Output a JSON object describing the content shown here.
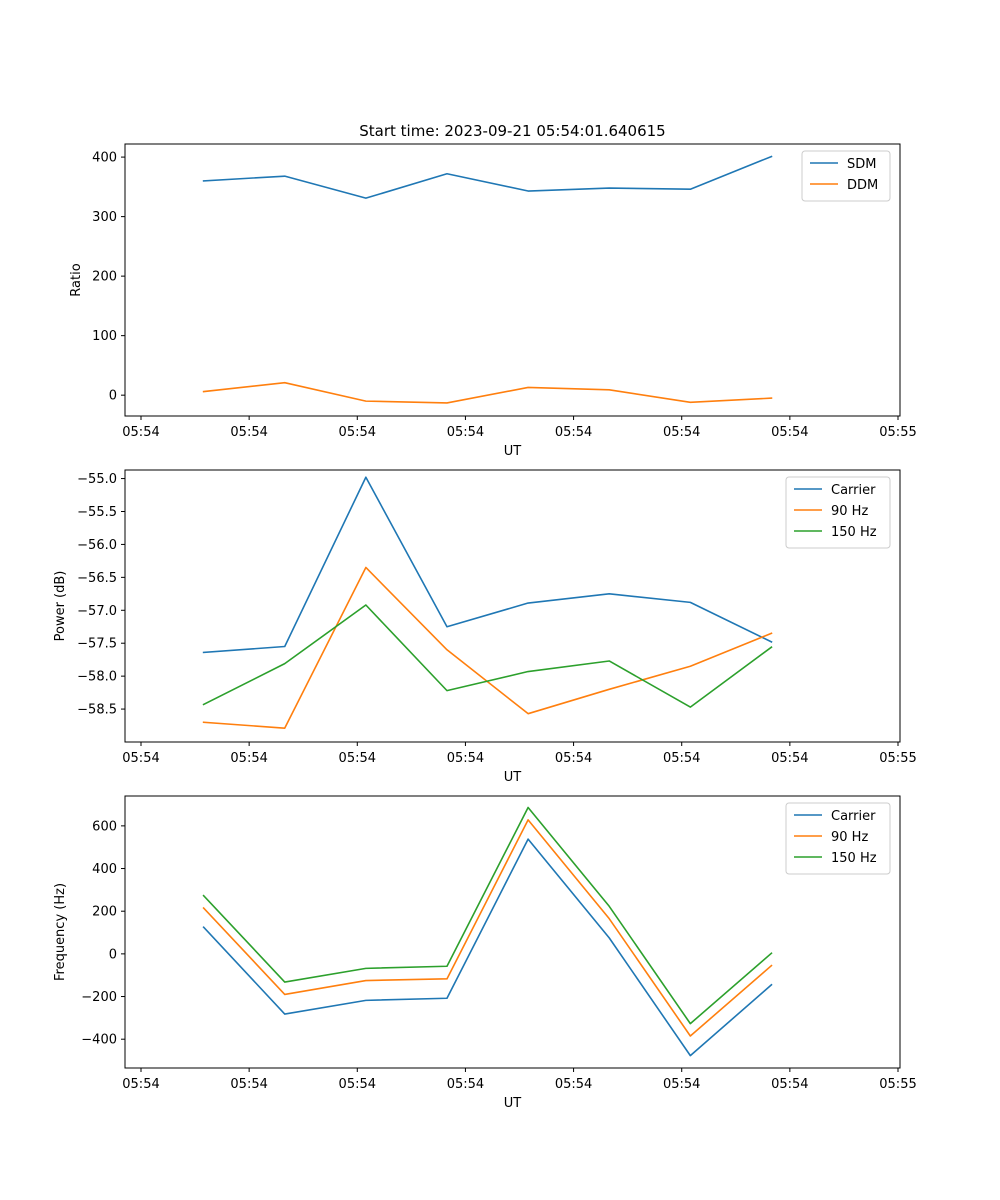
{
  "figure": {
    "title": "Start time: 2023-09-21 05:54:01.640615"
  },
  "colors": {
    "c0": "#1f77b4",
    "c1": "#ff7f0e",
    "c2": "#2ca02c",
    "axis": "#000000",
    "legend_border": "#cccccc"
  },
  "chart_data": [
    {
      "type": "line",
      "title": "Start time: 2023-09-21 05:54:01.640615",
      "xlabel": "UT",
      "ylabel": "Ratio",
      "x_ticks": [
        "05:54",
        "05:54",
        "05:54",
        "05:54",
        "05:54",
        "05:54",
        "05:54",
        "05:55"
      ],
      "xlim": [
        -0.13,
        6.08
      ],
      "x": [
        0.5,
        1.15,
        1.8,
        2.45,
        3.1,
        3.75,
        4.4,
        5.05
      ],
      "ylim": [
        -35,
        422
      ],
      "y_ticks": [
        0,
        100,
        200,
        300,
        400
      ],
      "y_tick_labels": [
        "0",
        "100",
        "200",
        "300",
        "400"
      ],
      "legend": "top-right",
      "series": [
        {
          "name": "SDM",
          "color_key": "c0",
          "values": [
            360,
            368,
            331,
            372,
            343,
            348,
            346,
            401
          ]
        },
        {
          "name": "DDM",
          "color_key": "c1",
          "values": [
            6,
            21,
            -10,
            -13,
            13,
            9,
            -12,
            -5
          ]
        }
      ]
    },
    {
      "type": "line",
      "title": "",
      "xlabel": "UT",
      "ylabel": "Power (dB)",
      "x_ticks": [
        "05:54",
        "05:54",
        "05:54",
        "05:54",
        "05:54",
        "05:54",
        "05:54",
        "05:55"
      ],
      "xlim": [
        -0.13,
        6.08
      ],
      "x": [
        0.5,
        1.15,
        1.8,
        2.45,
        3.1,
        3.75,
        4.4,
        5.05
      ],
      "ylim": [
        -59.0,
        -54.87
      ],
      "y_ticks": [
        -58.5,
        -58.0,
        -57.5,
        -57.0,
        -56.5,
        -56.0,
        -55.5,
        -55.0
      ],
      "y_tick_labels": [
        "−58.5",
        "−58.0",
        "−57.5",
        "−57.0",
        "−56.5",
        "−56.0",
        "−55.5",
        "−55.0"
      ],
      "legend": "top-right",
      "series": [
        {
          "name": "Carrier",
          "color_key": "c0",
          "values": [
            -57.64,
            -57.55,
            -54.98,
            -57.25,
            -56.89,
            -56.75,
            -56.88,
            -57.48
          ]
        },
        {
          "name": "90 Hz",
          "color_key": "c1",
          "values": [
            -58.7,
            -58.79,
            -56.35,
            -57.6,
            -58.57,
            -58.2,
            -57.85,
            -57.35
          ]
        },
        {
          "name": "150 Hz",
          "color_key": "c2",
          "values": [
            -58.43,
            -57.81,
            -56.92,
            -58.22,
            -57.93,
            -57.77,
            -58.47,
            -57.56
          ]
        }
      ]
    },
    {
      "type": "line",
      "title": "",
      "xlabel": "UT",
      "ylabel": "Frequency (Hz)",
      "x_ticks": [
        "05:54",
        "05:54",
        "05:54",
        "05:54",
        "05:54",
        "05:54",
        "05:54",
        "05:55"
      ],
      "xlim": [
        -0.13,
        6.08
      ],
      "x": [
        0.5,
        1.15,
        1.8,
        2.45,
        3.1,
        3.75,
        4.4,
        5.05
      ],
      "ylim": [
        -535,
        740
      ],
      "y_ticks": [
        -400,
        -200,
        0,
        200,
        400,
        600
      ],
      "y_tick_labels": [
        "−400",
        "−200",
        "0",
        "200",
        "400",
        "600"
      ],
      "legend": "top-right",
      "series": [
        {
          "name": "Carrier",
          "color_key": "c0",
          "values": [
            125,
            -282,
            -218,
            -208,
            538,
            75,
            -477,
            -145
          ]
        },
        {
          "name": "90 Hz",
          "color_key": "c1",
          "values": [
            215,
            -190,
            -125,
            -117,
            628,
            165,
            -385,
            -55
          ]
        },
        {
          "name": "150 Hz",
          "color_key": "c2",
          "values": [
            273,
            -132,
            -68,
            -58,
            686,
            223,
            -327,
            3
          ]
        }
      ]
    }
  ]
}
